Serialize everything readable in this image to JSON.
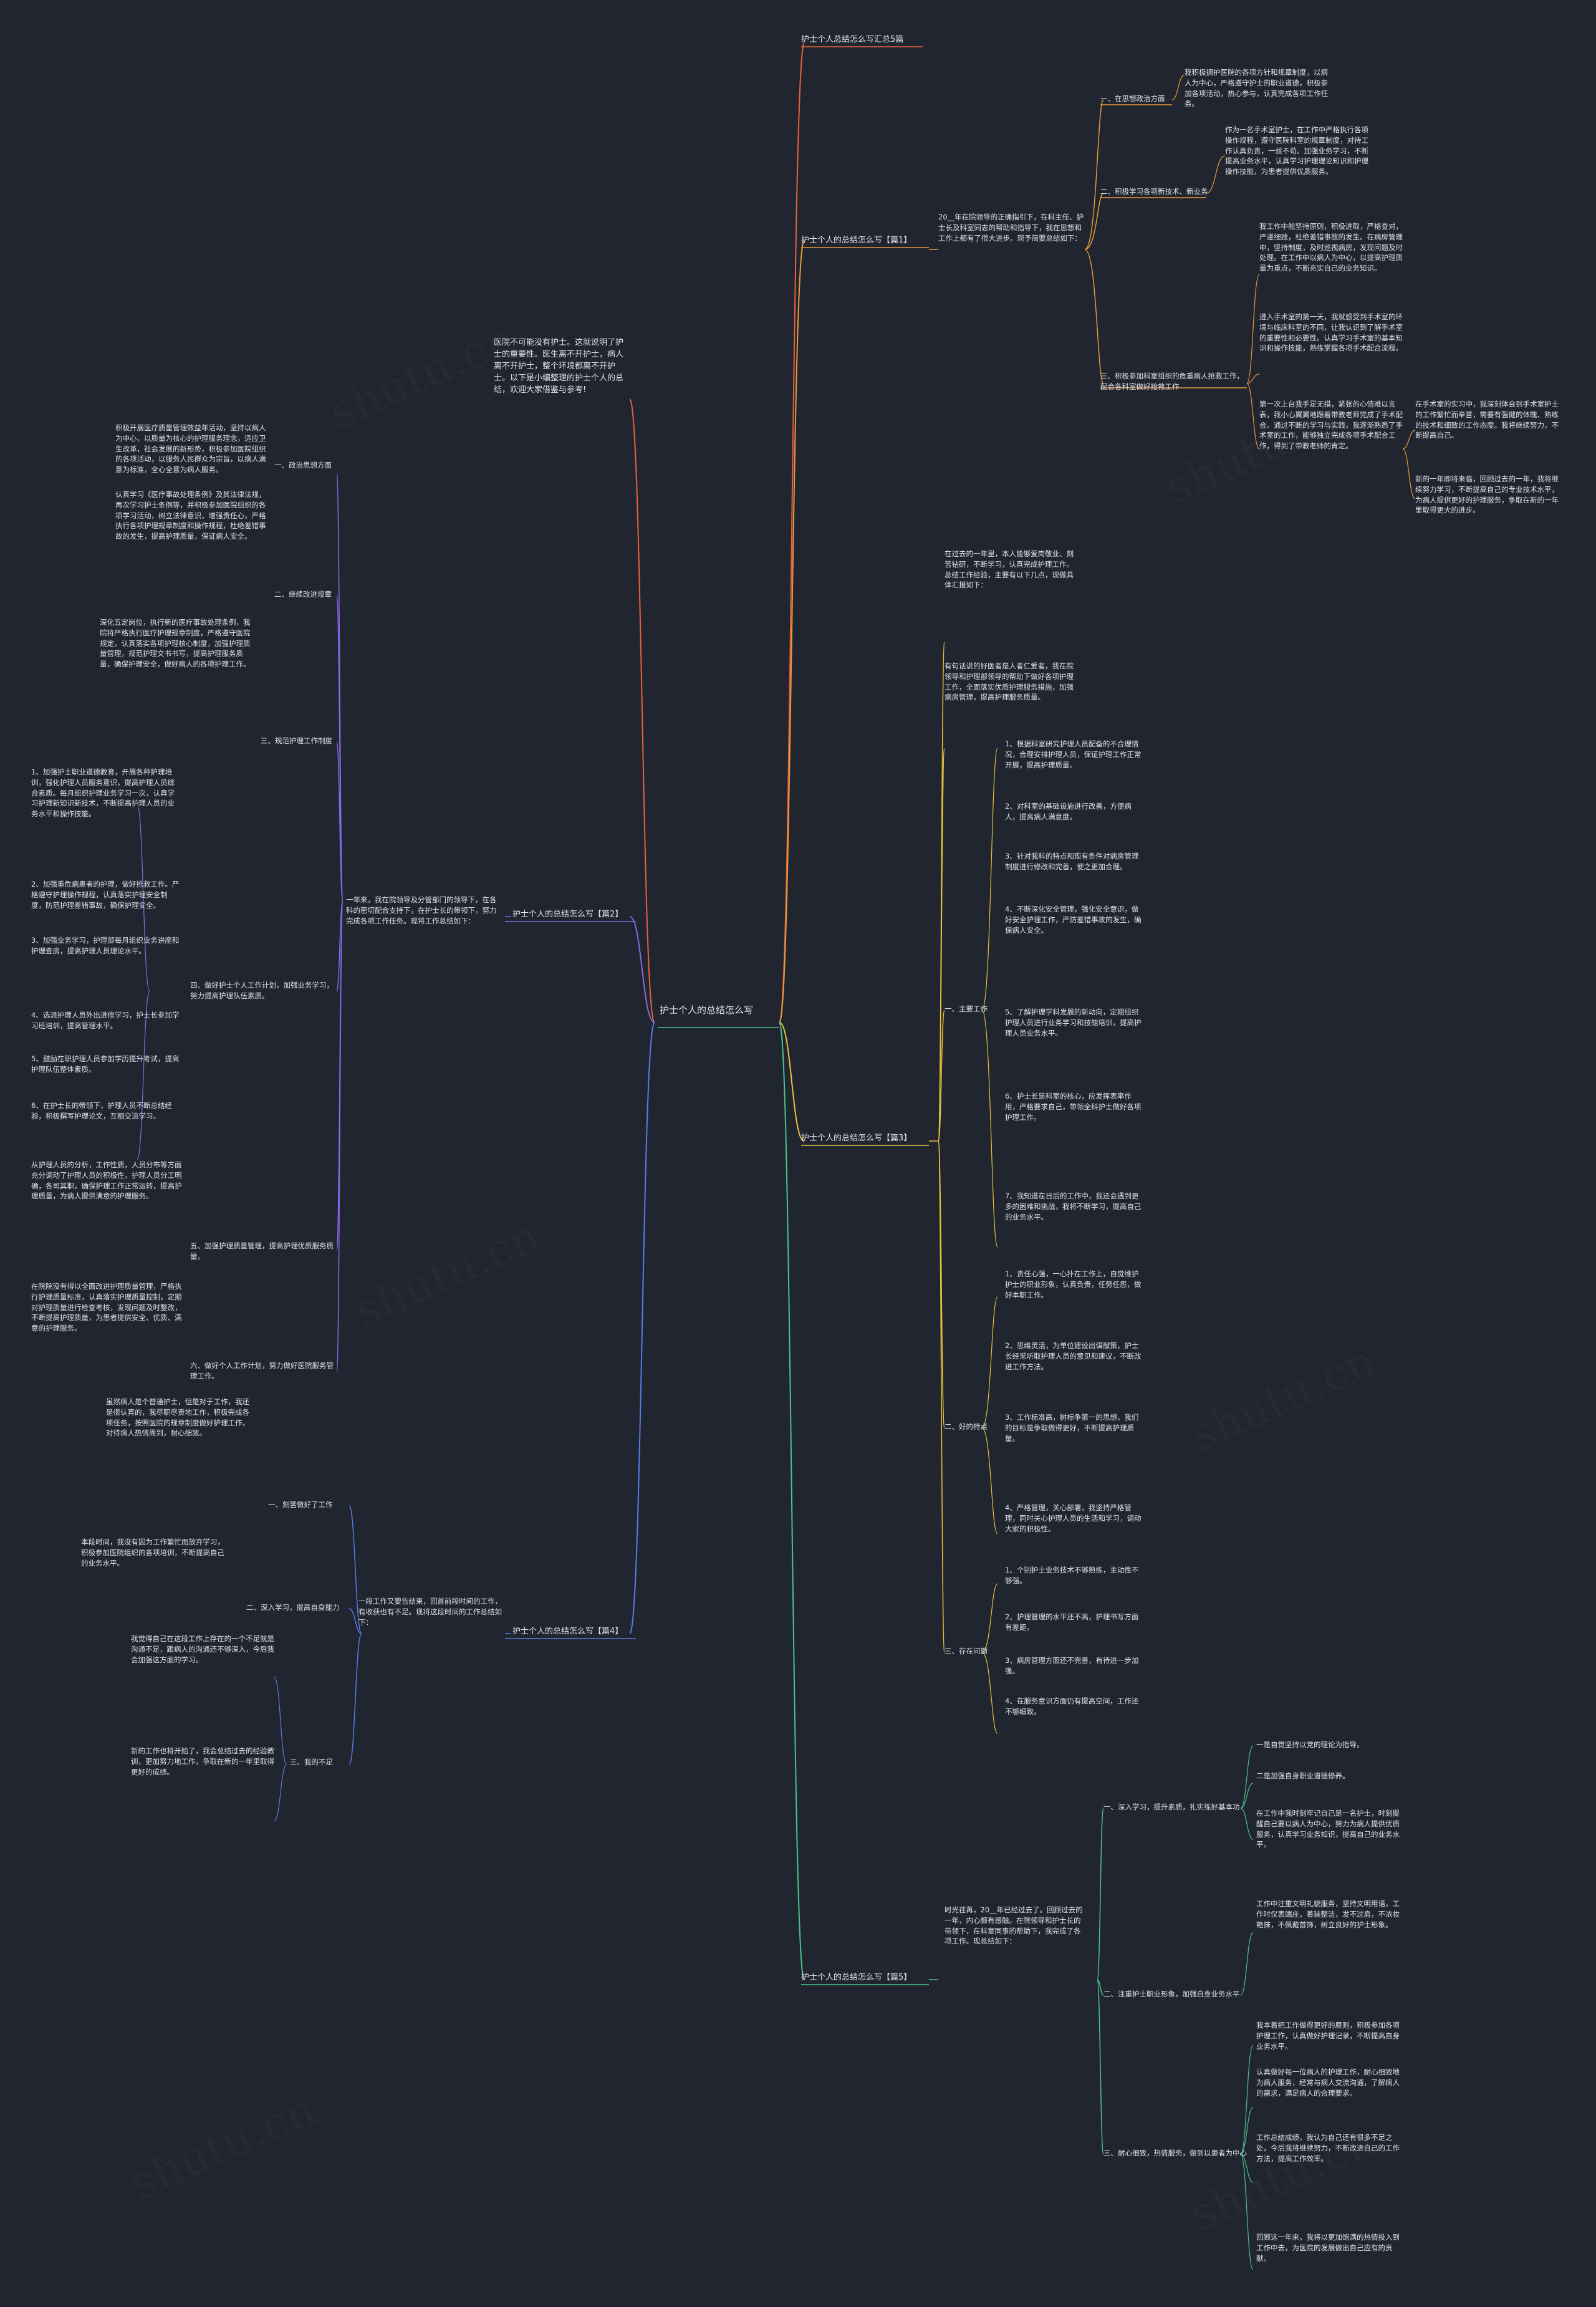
{
  "root": {
    "label": "护士个人的总结怎么写"
  },
  "intro": {
    "text": "医院不可能没有护士。这就说明了护士的重要性。医生离不开护士，病人离不开护士，整个环境都离不开护士。以下是小编整理的护士个人的总结，欢迎大家借鉴与参考!"
  },
  "branches": [
    {
      "label": "护士个人总结怎么写汇总5篇",
      "color": "#e8623a"
    },
    {
      "label": "护士个人的总结怎么写【篇1】",
      "color": "#e8623a",
      "intro": "20__年在院领导的正确指引下，在科主任、护士长及科室同志的帮助和指导下，我在思想和工作上都有了很大进步。现予简要总结如下："
    },
    {
      "label": "护士个人的总结怎么写【篇2】",
      "color": "#8a68e8",
      "intro": "一年来，我在院领导及分管部门的领导下，在各科的密切配合支持下，在护士长的带领下，努力完成各项工作任务。现将工作总结如下："
    },
    {
      "label": "护士个人的总结怎么写【篇3】",
      "color": "#e8c43a",
      "intro": "在过去的一年里，本人能够爱岗敬业、刻苦钻研，不断学习，认真完成护理工作。总结工作经验，主要有以下几点，现做具体汇报如下："
    },
    {
      "label": "护士个人的总结怎么写【篇4】",
      "color": "#5b7ae8",
      "intro": "一段工作又要告结束，回首前段时间的工作，有收获也有不足。现将这段时间的工作总结如下："
    },
    {
      "label": "护士个人的总结怎么写【篇5】",
      "color": "#49c48a",
      "intro": "时光荏苒，20__年已经过去了。回顾过去的一年，内心颇有感触。在院领导和护士长的带领下，在科室同事的帮助下，我完成了各项工作。现总结如下："
    }
  ],
  "b1": {
    "subs": [
      "一、在思想政治方面",
      "二、积极学习各项新技术、新业务",
      "三、积极参加科室组织的危重病人抢救工作，配合各科室做好抢救工作"
    ],
    "texts": [
      "我积极拥护医院的各项方针和规章制度，以病人为中心，严格遵守护士的职业道德，积极参加各项活动，热心参与，认真完成各项工作任务。",
      "作为一名手术室护士，在工作中严格执行各项操作规程，遵守医院科室的规章制度，对待工作认真负责，一丝不苟。加强业务学习，不断提高业务水平，认真学习护理理论知识和护理操作技能，为患者提供优质服务。",
      "我工作中能坚持原则，积极进取，严格查对，严谨细致，杜绝差错事故的发生。在病房管理中，坚持制度，及时巡视病房，发现问题及时处理。在工作中以病人为中心，以提高护理质量为重点，不断充实自己的业务知识。",
      "进入手术室的第一天，我就感受到手术室的环境与临床科室的不同，让我认识到了解手术室的重要性和必要性。认真学习手术室的基本知识和操作技能，熟练掌握各项手术配合流程。",
      "第一次上台我手足无措，紧张的心情难以言表，我小心翼翼地跟着带教老师完成了手术配合。通过不断的学习与实践，我逐渐熟悉了手术室的工作，能够独立完成各项手术配合工作，得到了带教老师的肯定。",
      "在手术室的实习中，我深刻体会到手术室护士的工作繁忙而辛苦，需要有强健的体魄、熟练的技术和细致的工作态度。我将继续努力，不断提高自己。",
      "新的一年即将来临，回顾过去的一年，我将继续努力学习，不断提高自己的专业技术水平，为病人提供更好的护理服务，争取在新的一年里取得更大的进步。"
    ]
  },
  "b2": {
    "subs": [
      "一、政治思想方面",
      "二、继续改进规章",
      "三、规范护理工作制度",
      "四、做好护士个人工作计划，加强业务学习，努力提高护理队伍素质。",
      "五、加强护理质量管理，提高护理优质服务质量。",
      "六、做好个人工作计划，努力做好医院服务管理工作。"
    ],
    "texts": [
      "积极开展医疗质量管理效益年活动，坚持以病人为中心，以质量为核心的护理服务理念，适应卫生改革，社会发展的新形势，积极参加医院组织的各项活动，以服务人民群众为宗旨，以病人满意为标准，全心全意为病人服务。",
      "认真学习《医疗事故处理条例》及其法律法规，再次学习护士条例等，并积极参加医院组织的各项学习活动，树立法律意识，增强责任心，严格执行各项护理规章制度和操作规程，杜绝差错事故的发生，提高护理质量，保证病人安全。",
      "深化五定岗位，执行新的医疗事故处理条例，我院将严格执行医疗护理规章制度，严格遵守医院规定，认真落实各项护理核心制度，加强护理质量管理，规范护理文书书写，提高护理服务质量，确保护理安全，做好病人的各项护理工作。",
      "1、加强护士职业道德教育，开展各种护理培训，强化护理人员服务意识，提高护理人员综合素质。每月组织护理业务学习一次，认真学习护理新知识新技术，不断提高护理人员的业务水平和操作技能。",
      "2、加强重危病患者的护理，做好抢救工作。严格遵守护理操作规程，认真落实护理安全制度，防范护理差错事故，确保护理安全。",
      "3、加强业务学习，护理部每月组织业务讲座和护理查房，提高护理人员理论水平。",
      "4、选派护理人员外出进修学习，护士长参加学习班培训，提高管理水平。",
      "5、鼓励在职护理人员参加学历提升考试，提高护理队伍整体素质。",
      "6、在护士长的带领下，护理人员不断总结经验，积极撰写护理论文，互相交流学习。",
      "从护理人员的分析，工作性质，人员分布等方面充分调动了护理人员的积极性，护理人员分工明确，各司其职，确保护理工作正常运转，提高护理质量，为病人提供满意的护理服务。",
      "在院院没有得以全面改进护理质量管理，严格执行护理质量标准，认真落实护理质量控制，定期对护理质量进行检查考核，发现问题及时整改，不断提高护理质量，为患者提供安全、优质、满意的护理服务。"
    ]
  },
  "b3": {
    "subs": [
      "一、主要工作",
      "二、好的特点",
      "三、存在问题"
    ],
    "texts": [
      "有句话说的好医者是人者仁爱者，我在院领导和护理部领导的帮助下做好各项护理工作，全面落实优质护理服务措施，加强病房管理，提高护理服务质量。",
      "1、根据科室研究护理人员配备的不合理情况，合理安排护理人员，保证护理工作正常开展，提高护理质量。",
      "2、对科室的基础设施进行改善，方便病人，提高病人满意度。",
      "3、针对我科的特点和现有条件对病房管理制度进行修改和完善，使之更加合理。",
      "4、不断深化安全管理，强化安全意识，做好安全护理工作，严防差错事故的发生，确保病人安全。",
      "5、了解护理学科发展的新动向，定期组织护理人员进行业务学习和技能培训，提高护理人员业务水平。",
      "6、护士长是科室的核心，应发挥表率作用，严格要求自己，带领全科护士做好各项护理工作。",
      "7、我知道在日后的工作中，我还会遇到更多的困难和挑战，我将不断学习，提高自己的业务水平。",
      "1、责任心强，一心扑在工作上，自觉维护护士的职业形象，认真负责，任劳任怨，做好本职工作。",
      "2、思维灵活，为单位建设出谋献策，护士长经常听取护理人员的意见和建议，不断改进工作方法。",
      "3、工作标准高，树标争第一的思想，我们的目标是争取做得更好，不断提高护理质量。",
      "4、严格管理，关心部署，我坚持严格管理，同时关心护理人员的生活和学习，调动大家的积极性。",
      "1、个别护士业务技术不够熟练，主动性不够强。",
      "2、护理管理的水平还不高，护理书写方面有差距。",
      "3、病房管理方面还不完善，有待进一步加强。",
      "4、在服务意识方面仍有提高空间，工作还不够细致。"
    ]
  },
  "b4": {
    "subs": [
      "一、刻苦做好了工作",
      "二、深入学习，提高自身能力",
      "三、我的不足"
    ],
    "texts": [
      "虽然病人是个普通护士，但是对于工作，我还是很认真的，我尽职尽责地工作，积极完成各项任务，按照医院的规章制度做好护理工作，对待病人热情周到，耐心细致。",
      "本段时间，我没有因为工作繁忙而放弃学习，积极参加医院组织的各项培训，不断提高自己的业务水平。",
      "我觉得自己在这段工作上存在的一个不足就是沟通不足，跟病人的沟通还不够深入，今后我会加强这方面的学习。",
      "新的工作也将开始了，我会总结过去的经验教训，更加努力地工作，争取在新的一年里取得更好的成绩。"
    ]
  },
  "b5": {
    "subs": [
      "一、深入学习，提升素质，扎实练好基本功",
      "二、注重护士职业形象，加强自身业务水平",
      "三、耐心细致，热情服务，做到以患者为中心"
    ],
    "texts": [
      "一是自觉坚持以党的理论为指导。",
      "二是加强自身职业道德修养。",
      "在工作中我时刻牢记自己是一名护士，时刻提醒自己要以病人为中心，努力为病人提供优质服务，认真学习业务知识，提高自己的业务水平。",
      "工作中注重文明礼貌服务，坚持文明用语，工作时仪表端庄，着装整洁，发不过肩，不浓妆艳抹，不佩戴首饰，树立良好的护士形象。",
      "我本着把工作做得更好的原则，积极参加各项护理工作，认真做好护理记录，不断提高自身业务水平。",
      "认真做好每一位病人的护理工作，耐心细致地为病人服务，经常与病人交流沟通，了解病人的需求，满足病人的合理要求。",
      "工作总结成绩，我认为自己还有很多不足之处，今后我将继续努力，不断改进自己的工作方法，提高工作效率。",
      "回顾这一年来，我将以更加饱满的热情投入到工作中去，为医院的发展做出自己应有的贡献。"
    ]
  },
  "colors": {
    "background": "#21252f",
    "text": "#dfe2e8",
    "red": "#e8623a",
    "orange": "#e89a3a",
    "purple": "#8a68e8",
    "yellow": "#e8c43a",
    "blue": "#5b7ae8",
    "green": "#49c48a",
    "teal": "#3ab8c4"
  },
  "watermark": "shutu.cn"
}
